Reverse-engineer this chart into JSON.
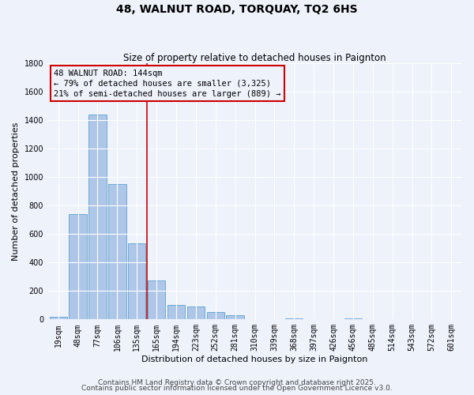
{
  "title": "48, WALNUT ROAD, TORQUAY, TQ2 6HS",
  "subtitle": "Size of property relative to detached houses in Paignton",
  "xlabel": "Distribution of detached houses by size in Paignton",
  "ylabel": "Number of detached properties",
  "bar_labels": [
    "19sqm",
    "48sqm",
    "77sqm",
    "106sqm",
    "135sqm",
    "165sqm",
    "194sqm",
    "223sqm",
    "252sqm",
    "281sqm",
    "310sqm",
    "339sqm",
    "368sqm",
    "397sqm",
    "426sqm",
    "456sqm",
    "485sqm",
    "514sqm",
    "543sqm",
    "572sqm",
    "601sqm"
  ],
  "bar_values": [
    20,
    740,
    1435,
    950,
    535,
    275,
    100,
    88,
    50,
    28,
    0,
    0,
    10,
    0,
    0,
    8,
    0,
    0,
    0,
    0,
    0
  ],
  "bar_color": "#aec6e8",
  "bar_edge_color": "#6aaad4",
  "vline_x": 4.5,
  "vline_color": "#cc0000",
  "ylim": [
    0,
    1800
  ],
  "yticks": [
    0,
    200,
    400,
    600,
    800,
    1000,
    1200,
    1400,
    1600,
    1800
  ],
  "annotation_title": "48 WALNUT ROAD: 144sqm",
  "annotation_line1": "← 79% of detached houses are smaller (3,325)",
  "annotation_line2": "21% of semi-detached houses are larger (889) →",
  "annotation_box_color": "#cc0000",
  "footer1": "Contains HM Land Registry data © Crown copyright and database right 2025.",
  "footer2": "Contains public sector information licensed under the Open Government Licence v3.0.",
  "bg_color": "#eef2fb",
  "grid_color": "#ffffff",
  "title_fontsize": 10,
  "subtitle_fontsize": 8.5,
  "axis_label_fontsize": 8,
  "tick_fontsize": 7,
  "annotation_fontsize": 7.5,
  "footer_fontsize": 6.5
}
